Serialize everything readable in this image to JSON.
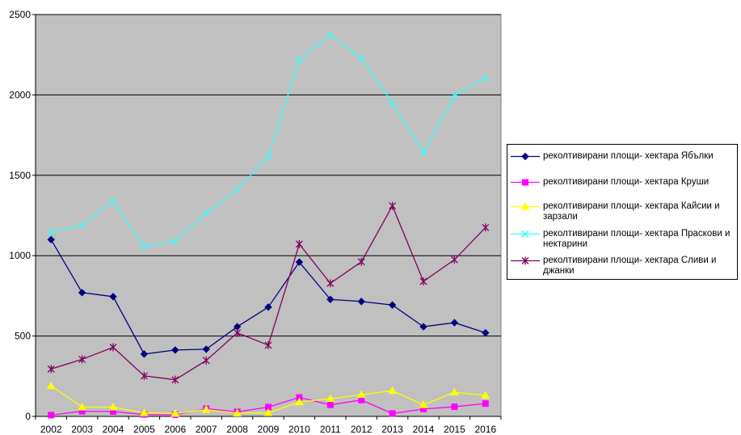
{
  "chart_data": {
    "type": "line",
    "title": "",
    "xlabel": "",
    "ylabel": "",
    "ylim": [
      0,
      2500
    ],
    "yticks": [
      0,
      500,
      1000,
      1500,
      2000,
      2500
    ],
    "grid": "horizontal",
    "legend_position": "right",
    "plot_background": "#c0c0c0",
    "categories": [
      "2002",
      "2003",
      "2004",
      "2005",
      "2006",
      "2007",
      "2008",
      "2009",
      "2010",
      "2011",
      "2012",
      "2013",
      "2014",
      "2015",
      "2016"
    ],
    "series": [
      {
        "name": "реколтивирани площи- хектара Ябълки",
        "color": "#000080",
        "marker": "diamond",
        "values": [
          1100,
          770,
          745,
          388,
          413,
          418,
          558,
          680,
          960,
          728,
          715,
          693,
          558,
          583,
          520
        ]
      },
      {
        "name": "реколтивирани площи- хектара Круши",
        "color": "#ff00ff",
        "marker": "square",
        "values": [
          8,
          32,
          30,
          12,
          10,
          48,
          28,
          58,
          118,
          72,
          102,
          18,
          46,
          60,
          80
        ]
      },
      {
        "name": "реколтивирани площи- хектара Кайсии и зарзали",
        "color": "#ffff00",
        "marker": "triangle",
        "values": [
          190,
          58,
          58,
          22,
          18,
          42,
          20,
          22,
          90,
          110,
          135,
          160,
          72,
          150,
          130
        ]
      },
      {
        "name": "реколтивирани площи- хектара Праскови и нектарини",
        "color": "#33ffff",
        "marker": "x",
        "values": [
          1145,
          1190,
          1340,
          1058,
          1090,
          1265,
          1410,
          1620,
          2218,
          2373,
          2230,
          1950,
          1640,
          1995,
          2105
        ]
      },
      {
        "name": "реколтивирани площи- хектара Сливи и джанки",
        "color": "#800060",
        "marker": "asterisk",
        "values": [
          295,
          355,
          430,
          252,
          228,
          348,
          520,
          443,
          1072,
          828,
          962,
          1310,
          840,
          975,
          1175
        ]
      }
    ]
  }
}
